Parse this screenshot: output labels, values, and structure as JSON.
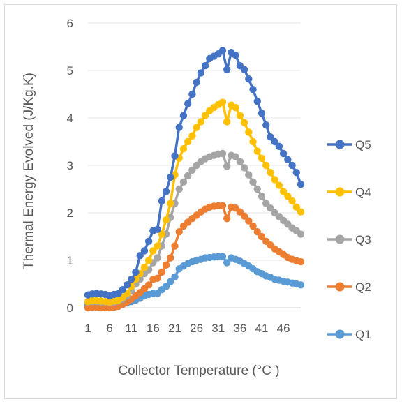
{
  "chart_data": {
    "type": "line",
    "title": "",
    "xlabel": "Collector Temperature (°C )",
    "ylabel": "Thermal Energy Evolved (J/Kg.K)",
    "ylim": [
      0,
      6
    ],
    "yticks": [
      "0",
      "1",
      "2",
      "3",
      "4",
      "5",
      "6"
    ],
    "x": [
      1,
      2,
      3,
      4,
      5,
      6,
      7,
      8,
      9,
      10,
      11,
      12,
      13,
      14,
      15,
      16,
      17,
      18,
      19,
      20,
      21,
      22,
      23,
      24,
      25,
      26,
      27,
      28,
      29,
      30,
      31,
      32,
      33,
      34,
      35,
      36,
      37,
      38,
      39,
      40,
      41,
      42,
      43,
      44,
      45,
      46,
      47,
      48,
      49,
      50
    ],
    "xticks": [
      "1",
      "6",
      "11",
      "16",
      "21",
      "26",
      "31",
      "36",
      "41",
      "46"
    ],
    "grid": "horizontal",
    "legend_position": "right",
    "series": [
      {
        "name": "Q1",
        "color": "#5b9bd5",
        "values": [
          0.05,
          0.06,
          0.06,
          0.05,
          0.05,
          0.04,
          0.05,
          0.05,
          0.07,
          0.1,
          0.13,
          0.16,
          0.2,
          0.25,
          0.28,
          0.3,
          0.3,
          0.38,
          0.45,
          0.55,
          0.65,
          0.82,
          0.88,
          0.93,
          0.97,
          1.0,
          1.02,
          1.05,
          1.06,
          1.07,
          1.08,
          1.08,
          0.95,
          1.05,
          1.02,
          0.98,
          0.93,
          0.88,
          0.82,
          0.76,
          0.72,
          0.67,
          0.64,
          0.6,
          0.58,
          0.56,
          0.54,
          0.52,
          0.5,
          0.48
        ]
      },
      {
        "name": "Q2",
        "color": "#ed7d31",
        "values": [
          0.0,
          0.01,
          0.01,
          0.0,
          0.0,
          0.0,
          0.01,
          0.03,
          0.07,
          0.12,
          0.18,
          0.25,
          0.32,
          0.4,
          0.48,
          0.6,
          0.62,
          0.75,
          0.9,
          1.05,
          1.3,
          1.6,
          1.72,
          1.8,
          1.88,
          1.95,
          2.02,
          2.08,
          2.12,
          2.14,
          2.15,
          2.15,
          1.88,
          2.12,
          2.1,
          2.02,
          1.93,
          1.83,
          1.72,
          1.6,
          1.5,
          1.4,
          1.32,
          1.24,
          1.18,
          1.12,
          1.06,
          1.02,
          0.99,
          0.97
        ]
      },
      {
        "name": "Q3",
        "color": "#a5a5a5",
        "values": [
          0.12,
          0.13,
          0.13,
          0.12,
          0.12,
          0.1,
          0.12,
          0.14,
          0.18,
          0.25,
          0.35,
          0.5,
          0.6,
          0.72,
          0.8,
          0.95,
          1.05,
          1.3,
          1.55,
          1.9,
          2.2,
          2.5,
          2.65,
          2.78,
          2.9,
          3.0,
          3.08,
          3.14,
          3.18,
          3.21,
          3.24,
          3.25,
          2.98,
          3.21,
          3.18,
          3.08,
          2.95,
          2.8,
          2.65,
          2.5,
          2.35,
          2.2,
          2.1,
          2.0,
          1.92,
          1.84,
          1.76,
          1.68,
          1.62,
          1.55
        ]
      },
      {
        "name": "Q4",
        "color": "#ffc000",
        "values": [
          0.13,
          0.15,
          0.15,
          0.14,
          0.13,
          0.12,
          0.14,
          0.16,
          0.22,
          0.3,
          0.45,
          0.6,
          0.72,
          0.85,
          1.0,
          1.2,
          1.3,
          1.55,
          1.85,
          2.2,
          2.8,
          3.15,
          3.35,
          3.5,
          3.62,
          3.8,
          3.92,
          4.05,
          4.15,
          4.22,
          4.28,
          4.33,
          3.92,
          4.27,
          4.22,
          4.05,
          3.9,
          3.7,
          3.5,
          3.3,
          3.15,
          3.0,
          2.85,
          2.7,
          2.58,
          2.45,
          2.35,
          2.25,
          2.12,
          2.02
        ]
      },
      {
        "name": "Q5",
        "color": "#4472c4",
        "values": [
          0.27,
          0.29,
          0.3,
          0.29,
          0.28,
          0.25,
          0.28,
          0.3,
          0.38,
          0.48,
          0.6,
          0.75,
          1.1,
          1.2,
          1.4,
          1.62,
          1.65,
          2.25,
          2.45,
          2.75,
          3.2,
          3.8,
          4.05,
          4.3,
          4.5,
          4.75,
          4.95,
          5.1,
          5.25,
          5.3,
          5.35,
          5.42,
          5.02,
          5.38,
          5.32,
          5.1,
          5.02,
          4.82,
          4.6,
          4.35,
          4.1,
          3.85,
          3.6,
          3.5,
          3.4,
          3.25,
          3.12,
          3.0,
          2.85,
          2.6
        ]
      }
    ]
  }
}
